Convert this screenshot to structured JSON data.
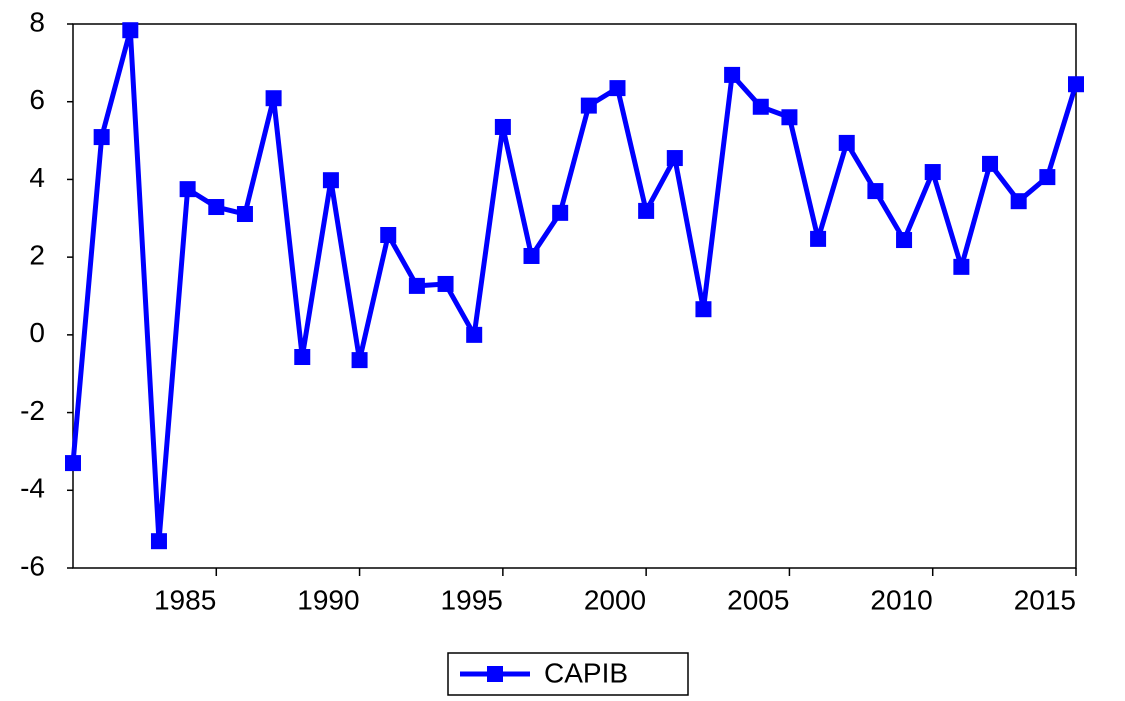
{
  "chart_data": {
    "type": "line",
    "x": [
      1980,
      1981,
      1982,
      1983,
      1984,
      1985,
      1986,
      1987,
      1988,
      1989,
      1990,
      1991,
      1992,
      1993,
      1994,
      1995,
      1996,
      1997,
      1998,
      1999,
      2000,
      2001,
      2002,
      2003,
      2004,
      2005,
      2006,
      2007,
      2008,
      2009,
      2010,
      2011,
      2012,
      2013,
      2014,
      2015
    ],
    "series": [
      {
        "name": "CAPIB",
        "color": "#0000ff",
        "values": [
          -3.3,
          5.09,
          7.84,
          -5.31,
          3.75,
          3.29,
          3.11,
          6.09,
          -0.57,
          3.98,
          -0.65,
          2.57,
          1.26,
          1.31,
          0.0,
          5.35,
          2.03,
          3.14,
          5.9,
          6.35,
          3.19,
          4.55,
          0.66,
          6.69,
          5.87,
          5.6,
          2.47,
          4.94,
          3.7,
          2.44,
          4.19,
          1.75,
          4.4,
          3.44,
          4.06,
          6.45
        ]
      }
    ],
    "xlim": [
      1980,
      2015
    ],
    "xticks": [
      1985,
      1990,
      1995,
      2000,
      2005,
      2010,
      2015
    ],
    "ylim": [
      -6,
      8
    ],
    "yticks": [
      -6,
      -4,
      -2,
      0,
      2,
      4,
      6,
      8
    ],
    "grid": false,
    "legend": "bottom"
  }
}
